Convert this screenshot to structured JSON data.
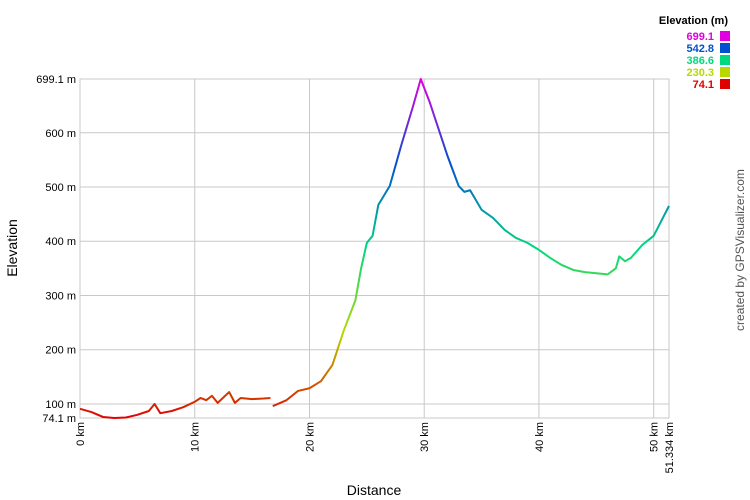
{
  "chart_data": {
    "type": "line",
    "x_label": "Distance",
    "y_label": "Elevation",
    "credit": "created by GPSVisualizer.com",
    "x": [
      0,
      1,
      2,
      3,
      4,
      5,
      6,
      6.5,
      7,
      8,
      9,
      10,
      10.5,
      11,
      11.5,
      12,
      13,
      13.5,
      14,
      15,
      16,
      16.6,
      16.7,
      16.8,
      18,
      19,
      20,
      21,
      22,
      23,
      24,
      24.5,
      25,
      25.5,
      26,
      27,
      28,
      29,
      29.7,
      30.5,
      31,
      32,
      33,
      33.5,
      34,
      35,
      36,
      37,
      38,
      39,
      40,
      41,
      42,
      43,
      44,
      45,
      46,
      46.7,
      47,
      47.5,
      48,
      49,
      50,
      51.334
    ],
    "series": [
      {
        "name": "Elevation",
        "values": [
          91,
          85,
          76,
          74,
          75,
          80,
          87,
          100,
          83,
          87,
          94,
          104,
          111,
          107,
          115,
          102,
          122,
          102,
          111,
          109,
          110,
          111,
          null,
          96,
          107,
          124,
          129,
          142,
          172,
          236,
          291,
          350,
          397,
          410,
          467,
          502,
          577,
          647,
          699.1,
          655,
          623,
          559,
          502,
          491,
          494,
          458,
          443,
          421,
          406,
          397,
          384,
          369,
          356,
          347,
          343,
          341,
          339,
          350,
          372,
          363,
          369,
          393,
          410,
          465
        ]
      }
    ],
    "xlim": [
      0,
      51.334
    ],
    "ylim": [
      74.1,
      699.1
    ],
    "xticks": [
      {
        "value": 0,
        "label": "0 km"
      },
      {
        "value": 10,
        "label": "10 km"
      },
      {
        "value": 20,
        "label": "20 km"
      },
      {
        "value": 30,
        "label": "30 km"
      },
      {
        "value": 40,
        "label": "40 km"
      },
      {
        "value": 50,
        "label": "50 km"
      },
      {
        "value": 51.334,
        "label": "51.334 km"
      }
    ],
    "yticks": [
      {
        "value": 74.1,
        "label": "74.1 m"
      },
      {
        "value": 100,
        "label": "100 m"
      },
      {
        "value": 200,
        "label": "200 m"
      },
      {
        "value": 300,
        "label": "300 m"
      },
      {
        "value": 400,
        "label": "400 m"
      },
      {
        "value": 500,
        "label": "500 m"
      },
      {
        "value": 600,
        "label": "600 m"
      },
      {
        "value": 699.1,
        "label": "699.1 m"
      }
    ],
    "grid": true,
    "legend": {
      "title": "Elevation (m)",
      "entries": [
        {
          "value": 699.1,
          "color": "#e000e0"
        },
        {
          "value": 542.8,
          "color": "#0050d0"
        },
        {
          "value": 386.6,
          "color": "#00d880"
        },
        {
          "value": 230.3,
          "color": "#b8d800"
        },
        {
          "value": 74.1,
          "color": "#e00000"
        }
      ]
    }
  }
}
